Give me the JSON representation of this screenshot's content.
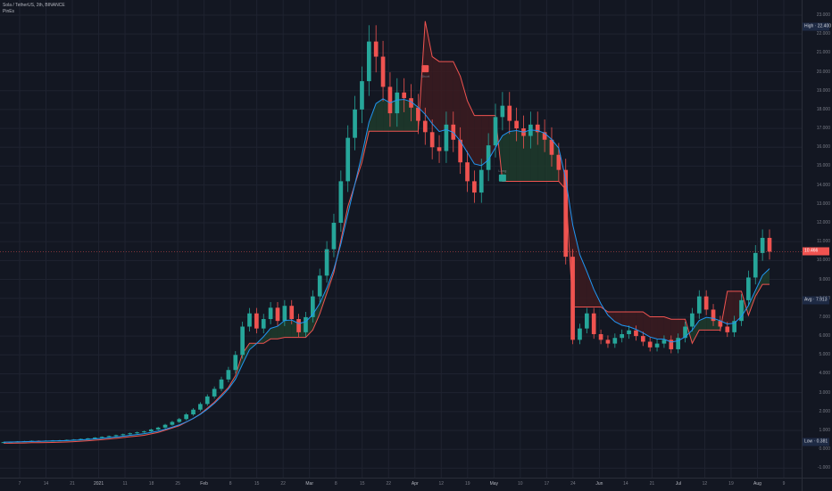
{
  "legend": {
    "symbol_line": "Sola / TetherUS, 2th, BINANCE",
    "indicator": "PinEs"
  },
  "colors": {
    "background": "#131722",
    "up_candle": "#26a69a",
    "down_candle": "#ef5350",
    "ema_line": "#2196f3",
    "stop_line": "#f05350",
    "fill_green": "#1f3b2c",
    "fill_red": "#3c1b20"
  },
  "price_axis": {
    "ticks": [
      "23.000",
      "22.000",
      "21.000",
      "20.000",
      "19.000",
      "18.000",
      "17.000",
      "16.000",
      "15.000",
      "14.000",
      "13.000",
      "12.000",
      "11.000",
      "10.000",
      "9.000",
      "8.000",
      "7.000",
      "6.000",
      "5.000",
      "4.000",
      "3.000",
      "2.000",
      "1.000",
      "0.000",
      "-1.000"
    ],
    "labels": {
      "high": "High · 22.400",
      "avg": "Avg · 7.913",
      "low": "Low · 0.381",
      "last": "10.466"
    }
  },
  "time_axis": {
    "ticks": [
      "7",
      "14",
      "21",
      "2021",
      "11",
      "18",
      "25",
      "Feb",
      "8",
      "15",
      "22",
      "Mar",
      "8",
      "15",
      "22",
      "Apr",
      "12",
      "19",
      "May",
      "10",
      "17",
      "24",
      "Jun",
      "14",
      "21",
      "Jul",
      "12",
      "19",
      "Aug",
      "9"
    ],
    "major": [
      "2021",
      "Feb",
      "Mar",
      "Apr",
      "May",
      "Jun",
      "Jul",
      "Aug"
    ]
  },
  "markers": {
    "short_label": "Short",
    "long_label": "Long"
  },
  "chart_data": {
    "type": "candlestick",
    "ylim": [
      -1.5,
      23.8
    ],
    "closes": [
      0.38,
      0.4,
      0.42,
      0.43,
      0.45,
      0.44,
      0.46,
      0.47,
      0.48,
      0.5,
      0.52,
      0.55,
      0.58,
      0.62,
      0.66,
      0.7,
      0.75,
      0.8,
      0.85,
      0.9,
      0.95,
      1.05,
      1.15,
      1.3,
      1.45,
      1.6,
      1.85,
      2.1,
      2.4,
      2.8,
      3.2,
      3.7,
      4.2,
      5.0,
      6.5,
      7.2,
      6.4,
      6.9,
      7.5,
      6.8,
      7.6,
      6.9,
      6.2,
      7.0,
      8.1,
      9.2,
      10.6,
      12.0,
      14.2,
      16.5,
      18.0,
      19.5,
      21.6,
      20.8,
      19.2,
      17.8,
      18.9,
      18.6,
      18.1,
      17.4,
      16.8,
      16.0,
      15.8,
      17.2,
      16.4,
      15.2,
      14.2,
      13.6,
      14.8,
      16.1,
      17.6,
      18.2,
      17.4,
      17.0,
      16.6,
      17.2,
      16.8,
      16.4,
      15.6,
      14.8,
      10.2,
      5.8,
      6.4,
      7.2,
      6.1,
      5.8,
      5.6,
      5.9,
      6.1,
      6.3,
      6.0,
      5.7,
      5.4,
      5.6,
      5.8,
      5.3,
      5.9,
      6.5,
      7.2,
      8.1,
      7.4,
      6.8,
      6.5,
      6.2,
      6.8,
      7.9,
      9.1,
      10.4,
      11.2,
      10.47
    ],
    "title": "",
    "xlabel": "",
    "ylabel": ""
  }
}
